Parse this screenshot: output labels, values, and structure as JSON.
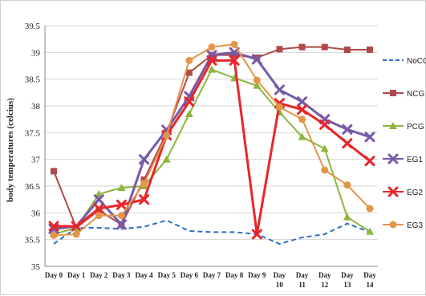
{
  "chart_data": {
    "type": "line",
    "title": "",
    "xlabel": "",
    "ylabel": "body temperatures (celcius)",
    "ylim": [
      35,
      39.5
    ],
    "yticks": [
      "35",
      "35.5",
      "36",
      "36.5",
      "37",
      "37.5",
      "38",
      "38.5",
      "39",
      "39.5"
    ],
    "grid": "horizontal",
    "legend_position": "right",
    "categories": [
      [
        "Day 0"
      ],
      [
        "Day 1"
      ],
      [
        "Day 2"
      ],
      [
        "Day 3"
      ],
      [
        "Day 4"
      ],
      [
        "Day 5"
      ],
      [
        "Day 6"
      ],
      [
        "Day 7"
      ],
      [
        "Day 8"
      ],
      [
        "Day 9"
      ],
      [
        "Day",
        "10"
      ],
      [
        "Day",
        "11"
      ],
      [
        "Day",
        "12"
      ],
      [
        "Day",
        "13"
      ],
      [
        "Day",
        "14"
      ]
    ],
    "series": [
      {
        "name": "NoCG",
        "color": "#2e6fc4",
        "dash": "dashed",
        "marker": "none",
        "values": [
          35.42,
          35.72,
          35.72,
          35.7,
          35.74,
          35.86,
          35.66,
          35.64,
          35.64,
          35.6,
          35.42,
          35.54,
          35.6,
          35.8,
          35.64
        ]
      },
      {
        "name": "NCG",
        "color": "#b04a4a",
        "dash": "solid",
        "marker": "square",
        "values": [
          36.78,
          35.72,
          36.05,
          35.78,
          36.62,
          37.5,
          38.62,
          38.95,
          38.95,
          38.9,
          39.06,
          39.1,
          39.1,
          39.05,
          39.05
        ]
      },
      {
        "name": "PCG",
        "color": "#8db63e",
        "dash": "solid",
        "marker": "triangle",
        "values": [
          35.6,
          35.72,
          36.35,
          36.47,
          36.5,
          37.0,
          37.85,
          38.68,
          38.52,
          38.38,
          37.88,
          37.42,
          37.2,
          35.92,
          35.65
        ]
      },
      {
        "name": "EG1",
        "color": "#7759a8",
        "dash": "solid",
        "marker": "x",
        "values": [
          35.7,
          35.75,
          36.25,
          35.78,
          37.0,
          37.55,
          38.18,
          38.95,
          39.0,
          38.87,
          38.3,
          38.08,
          37.75,
          37.56,
          37.42
        ]
      },
      {
        "name": "EG2",
        "color": "#e8262a",
        "dash": "solid",
        "marker": "x",
        "values": [
          35.75,
          35.75,
          36.08,
          36.15,
          36.25,
          37.45,
          38.08,
          38.85,
          38.85,
          35.6,
          38.05,
          37.93,
          37.65,
          37.3,
          36.97
        ]
      },
      {
        "name": "EG3",
        "color": "#e39549",
        "dash": "solid",
        "marker": "circle",
        "values": [
          35.58,
          35.6,
          35.95,
          35.95,
          36.55,
          37.45,
          38.85,
          39.1,
          39.15,
          38.48,
          37.98,
          37.75,
          36.8,
          36.52,
          36.08
        ]
      }
    ]
  }
}
